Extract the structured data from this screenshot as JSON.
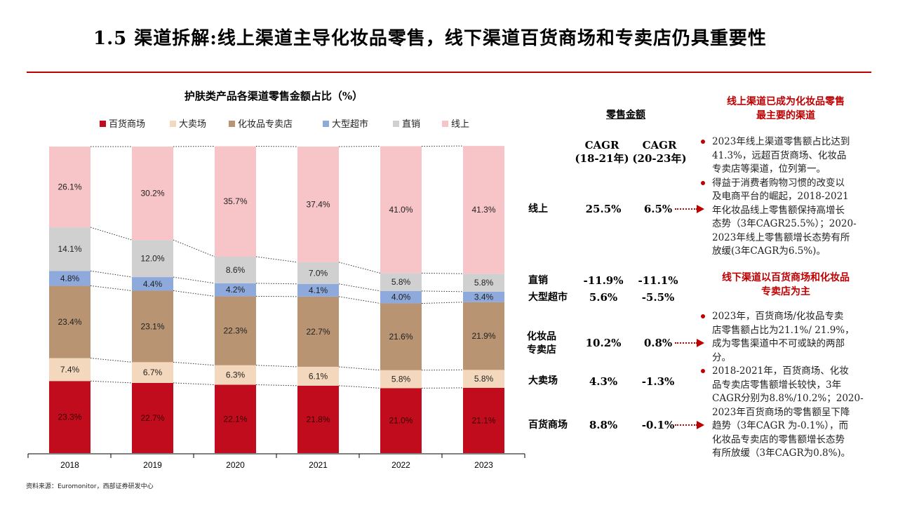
{
  "page": {
    "title": "1.5 渠道拆解:线上渠道主导化妆品零售，线下渠道百货商场和专卖店仍具重要性",
    "source": "资料来源：Euromonitor，西部证券研发中心"
  },
  "colors": {
    "accent_red": "#c00000",
    "department_store": "#c00c1c",
    "hypermarket": "#f3d8bd",
    "cosmetics_store": "#b89473",
    "supermarket": "#8ea9db",
    "direct_sales": "#d0d0d0",
    "online": "#f7c4c7"
  },
  "chart_data": {
    "type": "bar",
    "stacked": true,
    "title": "护肤类产品各渠道零售金额占比（%）",
    "categories": [
      "2018",
      "2019",
      "2020",
      "2021",
      "2022",
      "2023"
    ],
    "series": [
      {
        "name": "百货商场",
        "values": [
          23.3,
          22.7,
          22.1,
          21.8,
          21.0,
          21.1
        ],
        "labels": [
          "23.3%",
          "22.7%",
          "22.1%",
          "21.8%",
          "21.0%",
          "21.1%"
        ]
      },
      {
        "name": "大卖场",
        "values": [
          7.4,
          6.7,
          6.3,
          6.1,
          5.8,
          5.8
        ],
        "labels": [
          "7.4%",
          "6.7%",
          "6.3%",
          "6.1%",
          "5.8%",
          "5.8%"
        ]
      },
      {
        "name": "化妆品专卖店",
        "values": [
          23.4,
          23.1,
          22.3,
          22.7,
          21.6,
          21.9
        ],
        "labels": [
          "23.4%",
          "23.1%",
          "22.3%",
          "22.7%",
          "21.6%",
          "21.9%"
        ]
      },
      {
        "name": "大型超市",
        "values": [
          4.8,
          4.4,
          4.2,
          4.1,
          4.0,
          3.4
        ],
        "labels": [
          "4.8%",
          "4.4%",
          "4.2%",
          "4.1%",
          "4.0%",
          "3.4%"
        ]
      },
      {
        "name": "直销",
        "values": [
          14.1,
          12.0,
          8.6,
          7.0,
          5.8,
          5.8
        ],
        "labels": [
          "14.1%",
          "12.0%",
          "8.6%",
          "7.0%",
          "5.8%",
          "5.8%"
        ]
      },
      {
        "name": "线上",
        "values": [
          26.1,
          30.2,
          35.7,
          37.4,
          41.0,
          41.3
        ],
        "labels": [
          "26.1%",
          "30.2%",
          "35.7%",
          "37.4%",
          "41.0%",
          "41.3%"
        ]
      }
    ],
    "legend_position": "top",
    "ylim": [
      0,
      100
    ],
    "grid": false
  },
  "table": {
    "sales_label": "零售金额",
    "col1_header": [
      "CAGR",
      "(18-21年)"
    ],
    "col2_header": [
      "CAGR",
      "(20-23年)"
    ],
    "rows": [
      {
        "label": "线上",
        "cagr1": "25.5%",
        "cagr2": "6.5%",
        "arrow": true
      },
      {
        "label": "直销",
        "cagr1": "-11.9%",
        "cagr2": "-11.1%",
        "arrow": false
      },
      {
        "label": "大型超市",
        "cagr1": "5.6%",
        "cagr2": "-5.5%",
        "arrow": false
      },
      {
        "label": [
          "化妆品",
          "专卖店"
        ],
        "cagr1": "10.2%",
        "cagr2": "0.8%",
        "arrow": true
      },
      {
        "label": "大卖场",
        "cagr1": "4.3%",
        "cagr2": "-1.3%",
        "arrow": false
      },
      {
        "label": "百货商场",
        "cagr1": "8.8%",
        "cagr2": "-0.1%",
        "arrow": true
      }
    ]
  },
  "notes": {
    "online_heading": [
      "线上渠道已成为化妆品零售",
      "最主要的渠道"
    ],
    "online_bullets": [
      [
        "2023年线上渠道零售额占比达到",
        "41.3%，远超百货商场、化妆品",
        "专卖店等渠道，位列第一。"
      ],
      [
        "得益于消费者购物习惯的改变以",
        "及电商平台的崛起，2018-2021",
        "年化妆品线上零售额保持高增长",
        "态势（3年CAGR25.5%）；2020-",
        "2023年线上零售额增长态势有所",
        "放缓(3年CAGR为6.5%)。"
      ]
    ],
    "offline_heading": [
      "线下渠道以百货商场和化妆品",
      "专卖店为主"
    ],
    "offline_bullets": [
      [
        "2023年，百货商场/化妆品专卖",
        "店零售额占比为21.1%/ 21.9%，",
        "成为零售渠道中不可或缺的两部",
        "分。"
      ],
      [
        "2018-2021年，百货商场、化妆",
        "品专卖店零售额增长较快，3年",
        "CAGR分别为8.8%/10.2%；2020-",
        "2023年百货商场的零售额呈下降",
        "趋势（3年CAGR 为-0.1%），而",
        "化妆品专卖店的零售额增长态势",
        "有所放缓（3年CAGR为0.8%)。"
      ]
    ]
  }
}
